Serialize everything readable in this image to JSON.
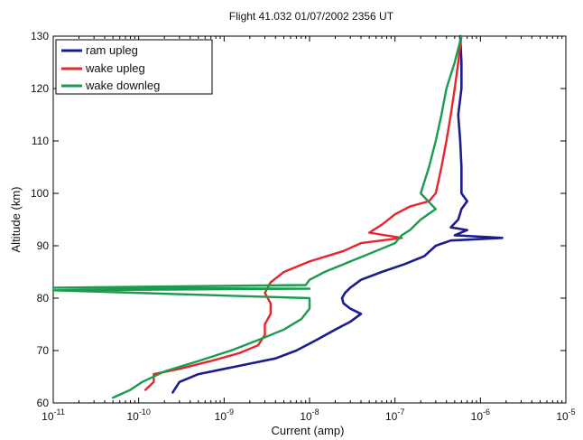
{
  "chart_data": {
    "type": "line",
    "title": "Flight 41.032    01/07/2002    2356 UT",
    "xlabel": "Current  (amp)",
    "ylabel": "Altitude  (km)",
    "xscale": "log",
    "xlim": [
      1e-11,
      1e-05
    ],
    "ylim": [
      60,
      130
    ],
    "grid": false,
    "legend_position": "top-left",
    "x_ticks": [
      {
        "value": 1e-11,
        "base": "10",
        "exp": "-11"
      },
      {
        "value": 1e-10,
        "base": "10",
        "exp": "-10"
      },
      {
        "value": 1e-09,
        "base": "10",
        "exp": "-9"
      },
      {
        "value": 1e-08,
        "base": "10",
        "exp": "-8"
      },
      {
        "value": 1e-07,
        "base": "10",
        "exp": "-7"
      },
      {
        "value": 1e-06,
        "base": "10",
        "exp": "-6"
      },
      {
        "value": 1e-05,
        "base": "10",
        "exp": "-5"
      }
    ],
    "y_ticks": [
      60,
      70,
      80,
      90,
      100,
      110,
      120,
      130
    ],
    "series": [
      {
        "name": "ram upleg",
        "color": "#1c1c8c",
        "points": [
          [
            2.5e-10,
            62
          ],
          [
            3e-10,
            64
          ],
          [
            5e-10,
            65.5
          ],
          [
            1e-09,
            66.5
          ],
          [
            2e-09,
            67.5
          ],
          [
            4e-09,
            68.5
          ],
          [
            7e-09,
            70
          ],
          [
            1.2e-08,
            72
          ],
          [
            2e-08,
            74
          ],
          [
            3e-08,
            75.5
          ],
          [
            4e-08,
            77
          ],
          [
            3e-08,
            78
          ],
          [
            2.5e-08,
            79
          ],
          [
            2.4e-08,
            80
          ],
          [
            2.6e-08,
            81
          ],
          [
            3e-08,
            82
          ],
          [
            4e-08,
            83.5
          ],
          [
            7e-08,
            85
          ],
          [
            1.3e-07,
            86.5
          ],
          [
            2.2e-07,
            88
          ],
          [
            3e-07,
            90
          ],
          [
            4.5e-07,
            91
          ],
          [
            1.8e-06,
            91.5
          ],
          [
            5e-07,
            92
          ],
          [
            7e-07,
            93
          ],
          [
            4.5e-07,
            93.5
          ],
          [
            5.5e-07,
            95
          ],
          [
            6e-07,
            97
          ],
          [
            7e-07,
            98.5
          ],
          [
            6e-07,
            100
          ],
          [
            6e-07,
            105
          ],
          [
            5.8e-07,
            110
          ],
          [
            5.5e-07,
            115
          ],
          [
            6e-07,
            120
          ],
          [
            6e-07,
            125
          ],
          [
            5.8e-07,
            130
          ]
        ]
      },
      {
        "name": "wake upleg",
        "color": "#e8242c",
        "points": [
          [
            1.2e-10,
            62.5
          ],
          [
            1.5e-10,
            64
          ],
          [
            1.5e-10,
            65.5
          ],
          [
            3e-10,
            66.5
          ],
          [
            7e-10,
            68
          ],
          [
            1.5e-09,
            69.5
          ],
          [
            2.5e-09,
            71
          ],
          [
            3e-09,
            73
          ],
          [
            3e-09,
            75
          ],
          [
            3.5e-09,
            77
          ],
          [
            3.5e-09,
            79
          ],
          [
            3e-09,
            81
          ],
          [
            3.5e-09,
            83
          ],
          [
            5e-09,
            85
          ],
          [
            1e-08,
            87
          ],
          [
            2.5e-08,
            89
          ],
          [
            4e-08,
            90.5
          ],
          [
            1.2e-07,
            91.5
          ],
          [
            5e-08,
            92.5
          ],
          [
            7e-08,
            94
          ],
          [
            1e-07,
            96
          ],
          [
            1.5e-07,
            97.5
          ],
          [
            2.5e-07,
            98.5
          ],
          [
            3e-07,
            100
          ],
          [
            3.5e-07,
            105
          ],
          [
            4e-07,
            110
          ],
          [
            4.5e-07,
            115
          ],
          [
            5e-07,
            120
          ],
          [
            5.5e-07,
            125
          ],
          [
            6e-07,
            130
          ]
        ]
      },
      {
        "name": "wake downleg",
        "color": "#1a9c4c",
        "points": [
          [
            5e-11,
            61
          ],
          [
            8e-11,
            62.5
          ],
          [
            1.1e-10,
            64
          ],
          [
            2e-10,
            66
          ],
          [
            5e-10,
            68
          ],
          [
            1.2e-09,
            70
          ],
          [
            2.5e-09,
            72
          ],
          [
            5e-09,
            74
          ],
          [
            8e-09,
            76
          ],
          [
            1e-08,
            78
          ],
          [
            1e-08,
            80
          ],
          [
            1e-11,
            81.5
          ],
          [
            1e-08,
            81.8
          ],
          [
            1e-11,
            82
          ],
          [
            9e-09,
            82.5
          ],
          [
            1e-08,
            83.5
          ],
          [
            1.5e-08,
            85
          ],
          [
            3e-08,
            87
          ],
          [
            6e-08,
            89
          ],
          [
            1e-07,
            90.5
          ],
          [
            1.2e-07,
            92
          ],
          [
            1.5e-07,
            93
          ],
          [
            2e-07,
            95
          ],
          [
            3e-07,
            97
          ],
          [
            2e-07,
            100
          ],
          [
            2.5e-07,
            105
          ],
          [
            3e-07,
            110
          ],
          [
            3.5e-07,
            115
          ],
          [
            4e-07,
            120
          ],
          [
            5e-07,
            125
          ],
          [
            6e-07,
            130
          ]
        ]
      }
    ]
  }
}
